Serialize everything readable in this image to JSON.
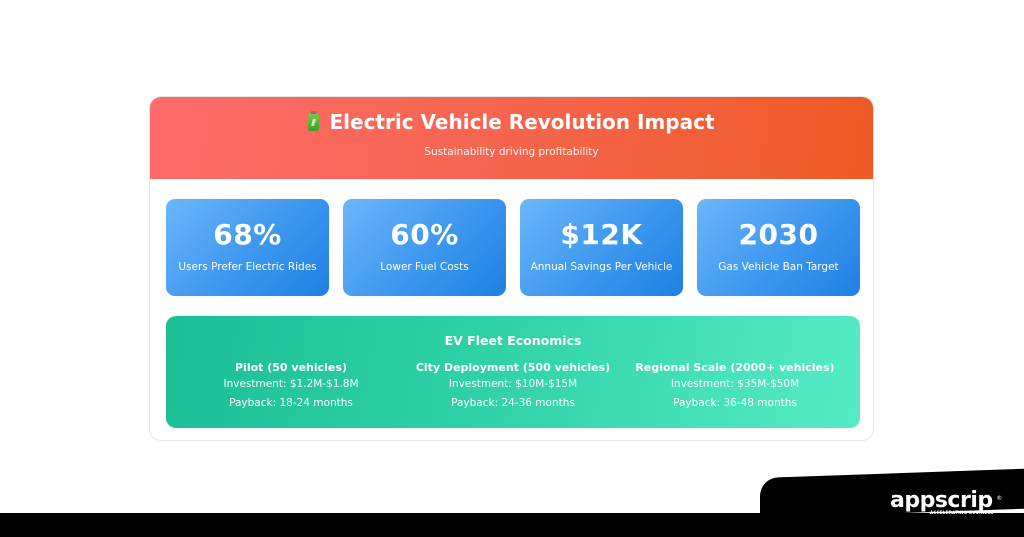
{
  "header": {
    "icon": "battery-icon",
    "title": "Electric Vehicle Revolution Impact",
    "subtitle": "Sustainability driving profitability",
    "gradient": [
      "#ff6b6b",
      "#ee5a24"
    ]
  },
  "stats": [
    {
      "value": "68%",
      "label": "Users Prefer Electric Rides"
    },
    {
      "value": "60%",
      "label": "Lower Fuel Costs"
    },
    {
      "value": "$12K",
      "label": "Annual Savings Per Vehicle"
    },
    {
      "value": "2030",
      "label": "Gas Vehicle Ban Target"
    }
  ],
  "stat_colors": [
    "#6cb6fb",
    "#1f80e3"
  ],
  "economics": {
    "title": "EV Fleet Economics",
    "tiers": [
      {
        "name": "Pilot (50 vehicles)",
        "investment": "Investment: $1.2M-$1.8M",
        "payback": "Payback: 18-24 months"
      },
      {
        "name": "City Deployment (500 vehicles)",
        "investment": "Investment: $10M-$15M",
        "payback": "Payback: 24-36 months"
      },
      {
        "name": "Regional Scale (2000+ vehicles)",
        "investment": "Investment: $35M-$50M",
        "payback": "Payback: 36-48 months"
      }
    ],
    "gradient": [
      "#1cbf95",
      "#55ecc4"
    ]
  },
  "footer": {
    "logo_text": "appscrip",
    "logo_reg": "®",
    "tagline": "ACCELERATING BUSINESS"
  }
}
